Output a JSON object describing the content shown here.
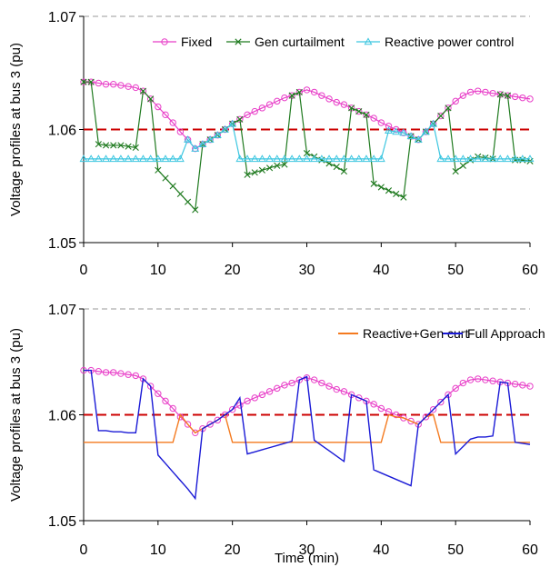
{
  "colors": {
    "fixed": "#e83fc8",
    "gen_curt": "#1f7a1f",
    "reactive": "#3cc6e0",
    "reactive_gen": "#f47a1f",
    "full": "#1a1ad6",
    "threshold": "#cc0000",
    "gridline": "#9a9a9a"
  },
  "chart_data": [
    {
      "type": "line",
      "title": "",
      "xlabel": "",
      "ylabel": "Voltage profiles at bus 3 (pu)",
      "xlim": [
        0,
        60
      ],
      "ylim": [
        1.05,
        1.07
      ],
      "xticks": [
        "0",
        "10",
        "20",
        "30",
        "40",
        "50",
        "60"
      ],
      "yticks": [
        "1.05",
        "1.06",
        "1.07"
      ],
      "threshold": 1.06,
      "legend_position": "top",
      "grid": "horizontal dashed",
      "x": [
        0,
        1,
        2,
        3,
        4,
        5,
        6,
        7,
        8,
        9,
        10,
        11,
        12,
        13,
        14,
        15,
        16,
        17,
        18,
        19,
        20,
        21,
        22,
        23,
        24,
        25,
        26,
        27,
        28,
        29,
        30,
        31,
        32,
        33,
        34,
        35,
        36,
        37,
        38,
        39,
        40,
        41,
        42,
        43,
        44,
        45,
        46,
        47,
        48,
        49,
        50,
        51,
        52,
        53,
        54,
        55,
        56,
        57,
        58,
        59,
        60
      ],
      "series": [
        {
          "name": "Fixed",
          "color_key": "fixed",
          "marker": "circle",
          "values": [
            1.0642,
            1.0642,
            1.0641,
            1.064,
            1.064,
            1.0639,
            1.0638,
            1.0637,
            1.0634,
            1.0627,
            1.062,
            1.0613,
            1.0606,
            1.0598,
            1.0591,
            1.0583,
            1.0587,
            1.0591,
            1.0595,
            1.06,
            1.0605,
            1.0609,
            1.0613,
            1.0616,
            1.0619,
            1.0622,
            1.0625,
            1.0628,
            1.063,
            1.0633,
            1.0635,
            1.0633,
            1.063,
            1.0627,
            1.0624,
            1.0622,
            1.0619,
            1.0616,
            1.0613,
            1.061,
            1.0606,
            1.0603,
            1.06,
            1.0597,
            1.0594,
            1.0591,
            1.0598,
            1.0605,
            1.0612,
            1.0619,
            1.0625,
            1.063,
            1.0633,
            1.0634,
            1.0633,
            1.0632,
            1.0631,
            1.063,
            1.0629,
            1.0628,
            1.0627
          ]
        },
        {
          "name": "Gen curtailment",
          "color_key": "gen_curt",
          "marker": "x",
          "values": [
            1.0642,
            1.0642,
            1.0587,
            1.0586,
            1.0586,
            1.0586,
            1.0585,
            1.0584,
            1.0634,
            1.0627,
            1.0564,
            1.0557,
            1.055,
            1.0543,
            1.0536,
            1.0529,
            1.0587,
            1.0591,
            1.0595,
            1.06,
            1.0605,
            1.0609,
            1.056,
            1.0562,
            1.0564,
            1.0566,
            1.0568,
            1.0569,
            1.063,
            1.0633,
            1.0579,
            1.0576,
            1.0573,
            1.057,
            1.0567,
            1.0563,
            1.0619,
            1.0616,
            1.0613,
            1.0552,
            1.0549,
            1.0546,
            1.0543,
            1.054,
            1.0594,
            1.0591,
            1.0598,
            1.0605,
            1.0612,
            1.0619,
            1.0563,
            1.0568,
            1.0573,
            1.0576,
            1.0575,
            1.0574,
            1.0631,
            1.063,
            1.0573,
            1.0573,
            1.0572
          ]
        },
        {
          "name": "Reactive power control",
          "color_key": "reactive",
          "marker": "triangle",
          "values": [
            1.0574,
            1.0574,
            1.0574,
            1.0574,
            1.0574,
            1.0574,
            1.0574,
            1.0574,
            1.0574,
            1.0574,
            1.0574,
            1.0574,
            1.0574,
            1.0574,
            1.0591,
            1.0583,
            1.0587,
            1.0591,
            1.0595,
            1.06,
            1.0605,
            1.0574,
            1.0574,
            1.0574,
            1.0574,
            1.0574,
            1.0574,
            1.0574,
            1.0574,
            1.0574,
            1.0574,
            1.0574,
            1.0574,
            1.0574,
            1.0574,
            1.0574,
            1.0574,
            1.0574,
            1.0574,
            1.0574,
            1.0574,
            1.0599,
            1.0598,
            1.0597,
            1.0594,
            1.0591,
            1.0598,
            1.0605,
            1.0574,
            1.0574,
            1.0574,
            1.0574,
            1.0574,
            1.0574,
            1.0574,
            1.0574,
            1.0574,
            1.0574,
            1.0574,
            1.0574,
            1.0574
          ]
        }
      ]
    },
    {
      "type": "line",
      "title": "",
      "xlabel": "Time (min)",
      "ylabel": "Voltage profiles at bus 3 (pu)",
      "xlim": [
        0,
        60
      ],
      "ylim": [
        1.05,
        1.07
      ],
      "xticks": [
        "0",
        "10",
        "20",
        "30",
        "40",
        "50",
        "60"
      ],
      "yticks": [
        "1.05",
        "1.06",
        "1.07"
      ],
      "threshold": 1.06,
      "legend_position": "top-right",
      "grid": "horizontal dashed",
      "x": [
        0,
        1,
        2,
        3,
        4,
        5,
        6,
        7,
        8,
        9,
        10,
        11,
        12,
        13,
        14,
        15,
        16,
        17,
        18,
        19,
        20,
        21,
        22,
        23,
        24,
        25,
        26,
        27,
        28,
        29,
        30,
        31,
        32,
        33,
        34,
        35,
        36,
        37,
        38,
        39,
        40,
        41,
        42,
        43,
        44,
        45,
        46,
        47,
        48,
        49,
        50,
        51,
        52,
        53,
        54,
        55,
        56,
        57,
        58,
        59,
        60
      ],
      "series": [
        {
          "name": "Fixed",
          "color_key": "fixed",
          "marker": "circle",
          "in_legend": false,
          "values": [
            1.0642,
            1.0642,
            1.0641,
            1.064,
            1.064,
            1.0639,
            1.0638,
            1.0637,
            1.0634,
            1.0627,
            1.062,
            1.0613,
            1.0606,
            1.0598,
            1.0591,
            1.0583,
            1.0587,
            1.0591,
            1.0595,
            1.06,
            1.0605,
            1.0609,
            1.0613,
            1.0616,
            1.0619,
            1.0622,
            1.0625,
            1.0628,
            1.063,
            1.0633,
            1.0635,
            1.0633,
            1.063,
            1.0627,
            1.0624,
            1.0622,
            1.0619,
            1.0616,
            1.0613,
            1.061,
            1.0606,
            1.0603,
            1.06,
            1.0597,
            1.0594,
            1.0591,
            1.0598,
            1.0605,
            1.0612,
            1.0619,
            1.0625,
            1.063,
            1.0633,
            1.0634,
            1.0633,
            1.0632,
            1.0631,
            1.063,
            1.0629,
            1.0628,
            1.0627
          ]
        },
        {
          "name": "Reactive+Gen curt",
          "color_key": "reactive_gen",
          "marker": "none",
          "values": [
            1.0574,
            1.0574,
            1.0574,
            1.0574,
            1.0574,
            1.0574,
            1.0574,
            1.0574,
            1.0574,
            1.0574,
            1.0574,
            1.0574,
            1.0574,
            1.06,
            1.0591,
            1.0583,
            1.0587,
            1.0591,
            1.0595,
            1.06,
            1.0574,
            1.0574,
            1.0574,
            1.0574,
            1.0574,
            1.0574,
            1.0574,
            1.0574,
            1.0574,
            1.0574,
            1.0574,
            1.0574,
            1.0574,
            1.0574,
            1.0574,
            1.0574,
            1.0574,
            1.0574,
            1.0574,
            1.0574,
            1.0574,
            1.06,
            1.0598,
            1.0597,
            1.0594,
            1.0591,
            1.0598,
            1.06,
            1.0574,
            1.0574,
            1.0574,
            1.0574,
            1.0574,
            1.0574,
            1.0574,
            1.0574,
            1.0574,
            1.0574,
            1.0574,
            1.0574,
            1.0574
          ]
        },
        {
          "name": "Full Approach",
          "color_key": "full",
          "marker": "none",
          "values": [
            1.0642,
            1.0642,
            1.0585,
            1.0585,
            1.0584,
            1.0584,
            1.0583,
            1.0583,
            1.0634,
            1.0627,
            1.0562,
            1.0554,
            1.0546,
            1.0538,
            1.053,
            1.0521,
            1.0587,
            1.0591,
            1.0595,
            1.06,
            1.0605,
            1.0616,
            1.0563,
            1.0565,
            1.0567,
            1.0569,
            1.0571,
            1.0573,
            1.0575,
            1.0633,
            1.0636,
            1.0576,
            1.0571,
            1.0566,
            1.0561,
            1.0556,
            1.0619,
            1.0616,
            1.0613,
            1.0548,
            1.0545,
            1.0542,
            1.0539,
            1.0536,
            1.0533,
            1.0591,
            1.0598,
            1.0605,
            1.0612,
            1.0619,
            1.0563,
            1.057,
            1.0577,
            1.0579,
            1.0579,
            1.058,
            1.0631,
            1.063,
            1.0574,
            1.0573,
            1.0572
          ]
        }
      ]
    }
  ]
}
